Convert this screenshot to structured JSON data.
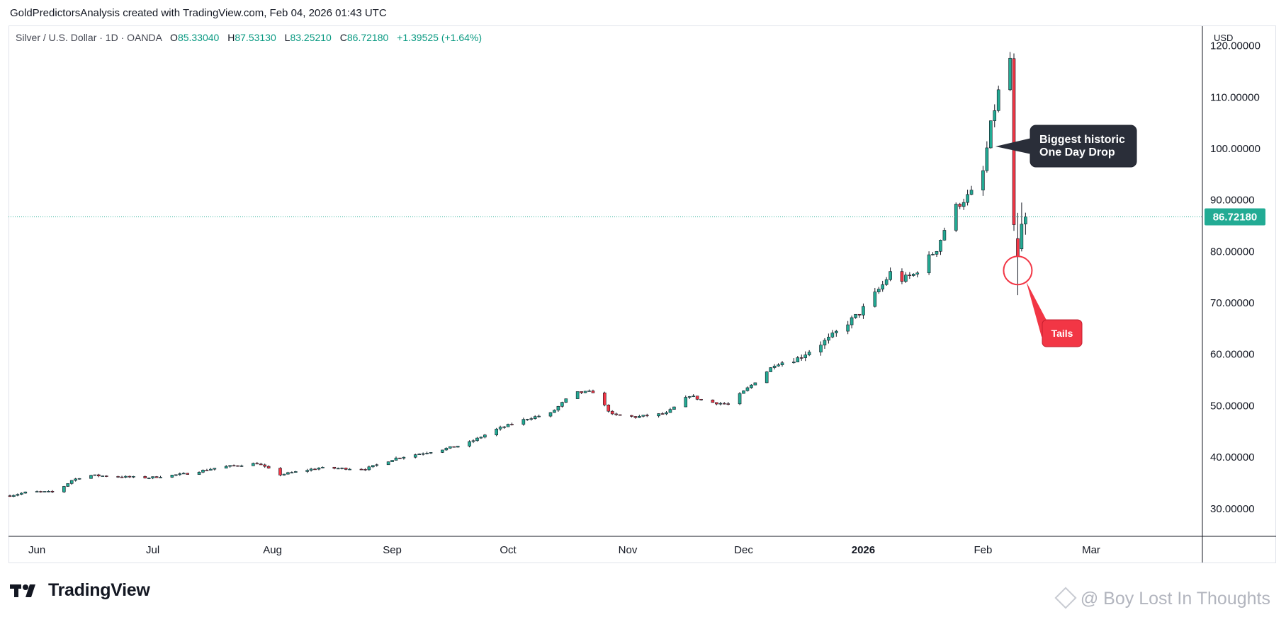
{
  "header": {
    "title": "GoldPredictorsAnalysis created with TradingView.com, Feb 04, 2026 01:43 UTC"
  },
  "legend": {
    "symbol": "Silver / U.S. Dollar · 1D · OANDA",
    "open_label": "O",
    "open": "85.33040",
    "high_label": "H",
    "high": "87.53130",
    "low_label": "L",
    "low": "83.25210",
    "close_label": "C",
    "close": "86.72180",
    "change": "+1.39525 (+1.64%)"
  },
  "price_axis": {
    "currency": "USD",
    "last_price": "86.72180",
    "last_price_color": "#22ab94"
  },
  "annotations": {
    "biggest_drop": [
      "Biggest historic",
      "One Day Drop"
    ],
    "tails": "Tails"
  },
  "footer": {
    "logo": "TradingView",
    "watermark": "@ Boy Lost In Thoughts"
  },
  "colors": {
    "up": "#22ab94",
    "down": "#f23645",
    "callout_dark": "#2a2e39",
    "callout_red": "#f23645",
    "axis_text": "#131722",
    "grid_line": "#e0e3eb"
  },
  "chart_data": {
    "type": "candlestick",
    "title": "Silver / U.S. Dollar · 1D · OANDA",
    "xlabel": "",
    "ylabel": "",
    "ylim": [
      24.6,
      123.8
    ],
    "yticks": [
      30,
      40,
      50,
      60,
      70,
      80,
      90,
      100,
      110,
      120
    ],
    "xticks": [
      {
        "label": "Jun",
        "day": 7
      },
      {
        "label": "Jul",
        "day": 37
      },
      {
        "label": "Aug",
        "day": 68
      },
      {
        "label": "Sep",
        "day": 99
      },
      {
        "label": "Oct",
        "day": 129
      },
      {
        "label": "Nov",
        "day": 160
      },
      {
        "label": "Dec",
        "day": 190
      },
      {
        "label": "2026",
        "day": 221,
        "bold": true
      },
      {
        "label": "Feb",
        "day": 252
      },
      {
        "label": "Mar",
        "day": 280
      }
    ],
    "start_date": "2025-05-26",
    "last_price": 86.7218,
    "grid": false,
    "keypoints": [
      [
        0,
        32.5
      ],
      [
        5,
        33.3
      ],
      [
        12,
        33.2
      ],
      [
        16,
        35.5
      ],
      [
        20,
        36.5
      ],
      [
        28,
        36.2
      ],
      [
        36,
        36.0
      ],
      [
        46,
        36.8
      ],
      [
        54,
        38.0
      ],
      [
        64,
        38.8
      ],
      [
        70,
        36.6
      ],
      [
        80,
        37.9
      ],
      [
        92,
        37.7
      ],
      [
        100,
        39.8
      ],
      [
        110,
        41.2
      ],
      [
        118,
        42.5
      ],
      [
        126,
        45.4
      ],
      [
        134,
        47.5
      ],
      [
        140,
        48.5
      ],
      [
        146,
        52.5
      ],
      [
        151,
        52.7
      ],
      [
        156,
        48.2
      ],
      [
        162,
        47.8
      ],
      [
        170,
        48.5
      ],
      [
        176,
        52.0
      ],
      [
        180,
        50.8
      ],
      [
        186,
        50.3
      ],
      [
        192,
        54.0
      ],
      [
        198,
        58.0
      ],
      [
        204,
        59.2
      ],
      [
        212,
        63.0
      ],
      [
        220,
        68.0
      ],
      [
        226,
        73.5
      ],
      [
        229,
        77.0
      ],
      [
        231,
        74.5
      ],
      [
        234,
        75.5
      ],
      [
        237,
        78.0
      ],
      [
        240,
        80.5
      ],
      [
        244,
        88.0
      ],
      [
        250,
        92.0
      ],
      [
        252,
        95.5
      ],
      [
        254,
        104.5
      ],
      [
        256,
        111.0
      ],
      [
        258,
        116.0
      ],
      [
        259,
        117.5
      ]
    ],
    "events": [
      {
        "day": 260,
        "open": 117.5,
        "high": 118.5,
        "low": 84.0,
        "close": 85.2
      },
      {
        "day": 261,
        "open": 82.5,
        "high": 87.5,
        "low": 71.5,
        "close": 79.0
      },
      {
        "day": 262,
        "open": 80.5,
        "high": 89.5,
        "low": 80.0,
        "close": 85.3
      },
      {
        "day": 263,
        "open": 85.3304,
        "high": 87.5313,
        "low": 83.2521,
        "close": 86.7218
      }
    ]
  }
}
